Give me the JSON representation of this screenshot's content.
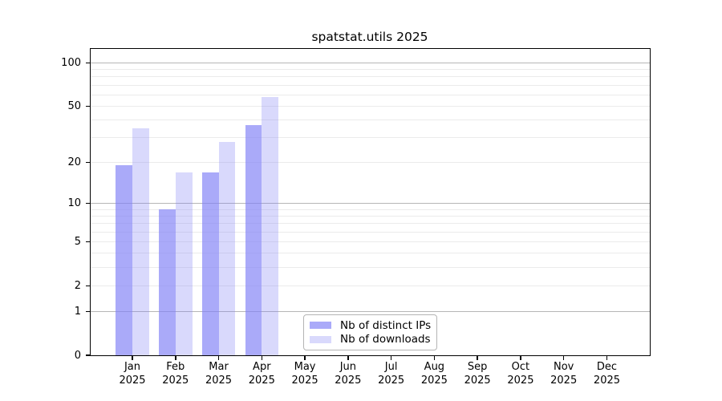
{
  "chart_data": {
    "type": "bar",
    "title": "spatstat.utils 2025",
    "year": "2025",
    "months": [
      "Jan",
      "Feb",
      "Mar",
      "Apr",
      "May",
      "Jun",
      "Jul",
      "Aug",
      "Sep",
      "Oct",
      "Nov",
      "Dec"
    ],
    "series": [
      {
        "name": "Nb of distinct IPs",
        "color": "rgba(128,128,246,0.67)",
        "values": [
          19,
          9,
          17,
          37,
          0,
          0,
          0,
          0,
          0,
          0,
          0,
          0
        ]
      },
      {
        "name": "Nb of downloads",
        "color": "rgba(128,128,246,0.30)",
        "values": [
          35,
          17,
          28,
          58,
          0,
          0,
          0,
          0,
          0,
          0,
          0,
          0
        ]
      }
    ],
    "xlabel": "",
    "ylabel": "",
    "yscale": "log1p",
    "ylim": [
      0,
      125
    ],
    "yticks": [
      0,
      1,
      2,
      5,
      10,
      20,
      50,
      100
    ],
    "major_gridlines": [
      1,
      10,
      100
    ],
    "minor_gridlines": [
      2,
      3,
      4,
      5,
      6,
      7,
      8,
      9,
      20,
      30,
      40,
      50,
      60,
      70,
      80,
      90
    ],
    "grid": true,
    "legend_position": "inside-bottom-center"
  },
  "colors": {
    "bar_distinct_ips": "rgba(128,128,246,0.67)",
    "bar_downloads": "rgba(128,128,246,0.30)",
    "grid_major": "#b6b6b6",
    "grid_minor": "#ebebeb",
    "axis": "#000000"
  }
}
